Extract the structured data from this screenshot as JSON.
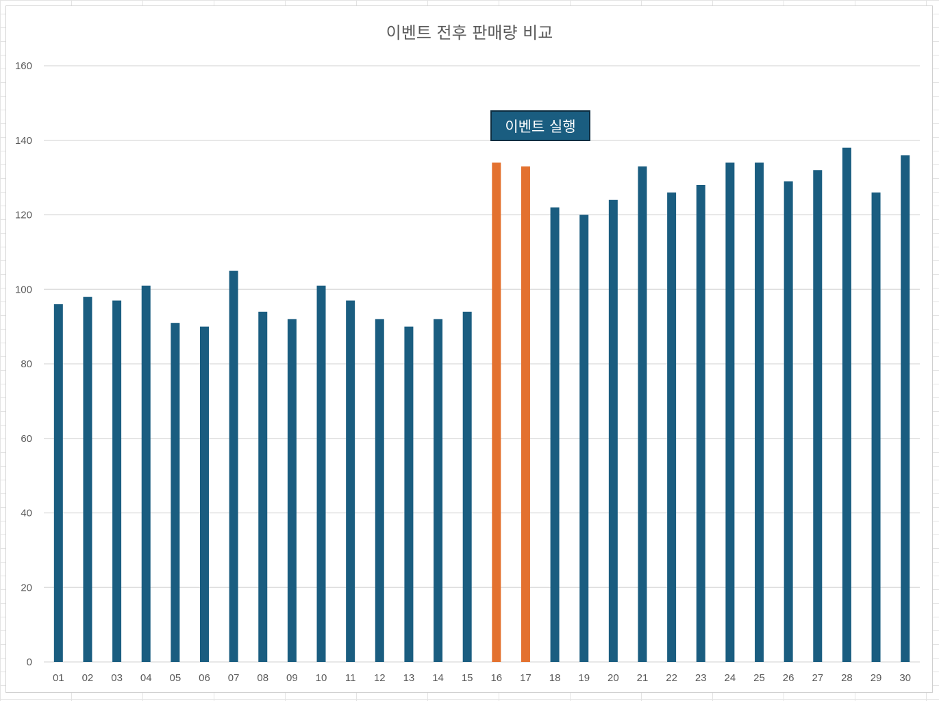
{
  "chart_data": {
    "type": "bar",
    "title": "이벤트 전후 판매량 비교",
    "annotation": "이벤트 실행",
    "categories": [
      "01",
      "02",
      "03",
      "04",
      "05",
      "06",
      "07",
      "08",
      "09",
      "10",
      "11",
      "12",
      "13",
      "14",
      "15",
      "16",
      "17",
      "18",
      "19",
      "20",
      "21",
      "22",
      "23",
      "24",
      "25",
      "26",
      "27",
      "28",
      "29",
      "30"
    ],
    "values": [
      96,
      98,
      97,
      101,
      91,
      90,
      105,
      94,
      92,
      101,
      97,
      92,
      90,
      92,
      94,
      134,
      133,
      122,
      120,
      124,
      133,
      126,
      128,
      134,
      134,
      129,
      132,
      138,
      126,
      136
    ],
    "highlight_categories": [
      "16",
      "17"
    ],
    "ylim": [
      0,
      160
    ],
    "yticks": [
      0,
      20,
      40,
      60,
      80,
      100,
      120,
      140,
      160
    ],
    "grid": true,
    "legend": "none",
    "colors": {
      "default": "#1a5d80",
      "highlight": "#e3712f",
      "grid": "#d9d9d9"
    }
  }
}
